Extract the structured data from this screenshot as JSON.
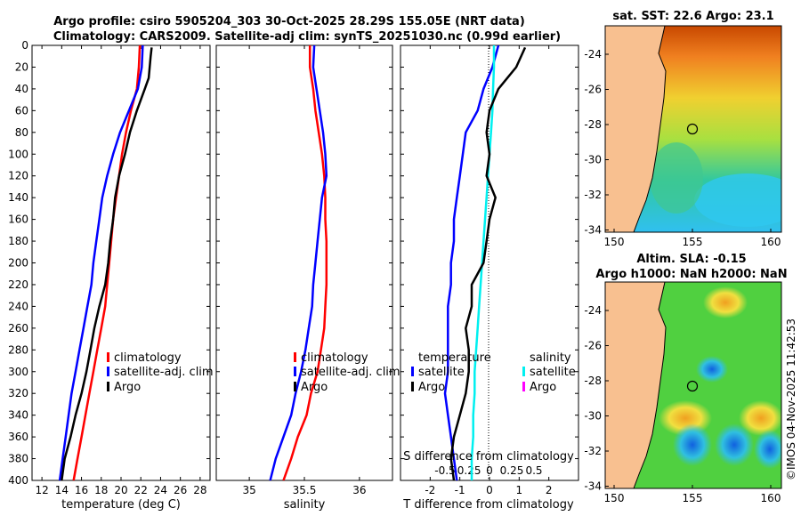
{
  "chart_data": [
    {
      "type": "line",
      "panel": "temperature",
      "title_line1": "Argo profile: csiro 5905204_303 30-Oct-2025 28.29S 155.05E (NRT data)",
      "title_line2": "Climatology: CARS2009. Satellite-adj clim: synTS_20251030.nc (0.99d earlier)",
      "xlabel": "temperature (deg C)",
      "xlim": [
        11,
        29
      ],
      "xticks": [
        "12",
        "14",
        "16",
        "18",
        "20",
        "22",
        "24",
        "26",
        "28"
      ],
      "ylim": [
        400,
        0
      ],
      "yticks": [
        "0",
        "20",
        "40",
        "60",
        "80",
        "100",
        "120",
        "140",
        "160",
        "180",
        "200",
        "220",
        "240",
        "260",
        "280",
        "300",
        "320",
        "340",
        "360",
        "380",
        "400"
      ],
      "legend": [
        "climatology",
        "satellite-adj. clim",
        "Argo"
      ],
      "series": [
        {
          "name": "climatology",
          "color": "#ff0000",
          "points": [
            [
              21.9,
              0
            ],
            [
              21.8,
              20
            ],
            [
              21.6,
              40
            ],
            [
              21.0,
              60
            ],
            [
              20.5,
              80
            ],
            [
              20.1,
              100
            ],
            [
              19.8,
              120
            ],
            [
              19.5,
              140
            ],
            [
              19.2,
              160
            ],
            [
              19.0,
              180
            ],
            [
              18.8,
              200
            ],
            [
              18.6,
              220
            ],
            [
              18.4,
              240
            ],
            [
              18.0,
              260
            ],
            [
              17.6,
              280
            ],
            [
              17.2,
              300
            ],
            [
              16.8,
              320
            ],
            [
              16.4,
              340
            ],
            [
              16.0,
              360
            ],
            [
              15.6,
              380
            ],
            [
              15.2,
              400
            ]
          ]
        },
        {
          "name": "satellite-adj. clim",
          "color": "#0000ff",
          "points": [
            [
              22.2,
              0
            ],
            [
              22.1,
              20
            ],
            [
              21.7,
              40
            ],
            [
              20.8,
              60
            ],
            [
              19.9,
              80
            ],
            [
              19.2,
              100
            ],
            [
              18.6,
              120
            ],
            [
              18.1,
              140
            ],
            [
              17.8,
              160
            ],
            [
              17.5,
              180
            ],
            [
              17.2,
              200
            ],
            [
              17.0,
              220
            ],
            [
              16.6,
              240
            ],
            [
              16.2,
              260
            ],
            [
              15.8,
              280
            ],
            [
              15.4,
              300
            ],
            [
              15.0,
              320
            ],
            [
              14.7,
              340
            ],
            [
              14.4,
              360
            ],
            [
              14.1,
              380
            ],
            [
              13.8,
              400
            ]
          ]
        },
        {
          "name": "Argo",
          "color": "#000000",
          "points": [
            [
              23.1,
              2
            ],
            [
              23.0,
              10
            ],
            [
              22.9,
              20
            ],
            [
              22.8,
              30
            ],
            [
              22.4,
              40
            ],
            [
              21.6,
              60
            ],
            [
              20.9,
              80
            ],
            [
              20.4,
              100
            ],
            [
              19.8,
              120
            ],
            [
              19.4,
              140
            ],
            [
              19.2,
              160
            ],
            [
              18.9,
              180
            ],
            [
              18.7,
              200
            ],
            [
              18.4,
              220
            ],
            [
              17.8,
              240
            ],
            [
              17.3,
              260
            ],
            [
              16.9,
              280
            ],
            [
              16.5,
              300
            ],
            [
              16.0,
              320
            ],
            [
              15.4,
              340
            ],
            [
              14.9,
              360
            ],
            [
              14.3,
              380
            ],
            [
              14.0,
              400
            ]
          ]
        }
      ]
    },
    {
      "type": "line",
      "panel": "salinity",
      "xlabel": "salinity",
      "xlim": [
        34.7,
        36.3
      ],
      "xticks": [
        "35",
        "35.5",
        "36"
      ],
      "ylim": [
        400,
        0
      ],
      "legend": [
        "climatology",
        "satellite-adj. clim",
        "Argo"
      ],
      "series": [
        {
          "name": "climatology",
          "color": "#ff0000",
          "points": [
            [
              35.55,
              0
            ],
            [
              35.55,
              20
            ],
            [
              35.58,
              40
            ],
            [
              35.6,
              60
            ],
            [
              35.63,
              80
            ],
            [
              35.66,
              100
            ],
            [
              35.68,
              120
            ],
            [
              35.69,
              140
            ],
            [
              35.69,
              160
            ],
            [
              35.7,
              180
            ],
            [
              35.7,
              200
            ],
            [
              35.7,
              220
            ],
            [
              35.69,
              240
            ],
            [
              35.68,
              260
            ],
            [
              35.65,
              280
            ],
            [
              35.62,
              300
            ],
            [
              35.56,
              320
            ],
            [
              35.52,
              340
            ],
            [
              35.44,
              360
            ],
            [
              35.38,
              380
            ],
            [
              35.31,
              400
            ]
          ]
        },
        {
          "name": "satellite-adj. clim",
          "color": "#0000ff",
          "points": [
            [
              35.59,
              0
            ],
            [
              35.58,
              20
            ],
            [
              35.61,
              40
            ],
            [
              35.64,
              60
            ],
            [
              35.67,
              80
            ],
            [
              35.69,
              100
            ],
            [
              35.7,
              120
            ],
            [
              35.66,
              140
            ],
            [
              35.64,
              160
            ],
            [
              35.62,
              180
            ],
            [
              35.6,
              200
            ],
            [
              35.58,
              220
            ],
            [
              35.57,
              240
            ],
            [
              35.54,
              260
            ],
            [
              35.51,
              280
            ],
            [
              35.47,
              300
            ],
            [
              35.42,
              320
            ],
            [
              35.38,
              340
            ],
            [
              35.31,
              360
            ],
            [
              35.24,
              380
            ],
            [
              35.19,
              400
            ]
          ]
        }
      ]
    },
    {
      "type": "line",
      "panel": "difference",
      "xlabel": "T difference from climatology",
      "xlabel2": "S difference from climatology",
      "xlim": [
        -3,
        3
      ],
      "xticks": [
        "-2",
        "-1",
        "0",
        "1",
        "2"
      ],
      "xticks2": [
        "-0.5",
        "-0.25",
        "0",
        "0.25",
        "0.5"
      ],
      "legend_t_header": "temperature",
      "legend_t": [
        "satellite",
        "Argo"
      ],
      "legend_s_header": "salinity",
      "legend_s": [
        "satellite",
        "Argo"
      ],
      "series": [
        {
          "name": "temperature satellite",
          "color": "#0000ff",
          "points": [
            [
              0.3,
              0
            ],
            [
              0.1,
              20
            ],
            [
              -0.2,
              40
            ],
            [
              -0.4,
              60
            ],
            [
              -0.8,
              80
            ],
            [
              -0.9,
              100
            ],
            [
              -1.0,
              120
            ],
            [
              -1.1,
              140
            ],
            [
              -1.2,
              160
            ],
            [
              -1.2,
              180
            ],
            [
              -1.3,
              200
            ],
            [
              -1.3,
              220
            ],
            [
              -1.4,
              240
            ],
            [
              -1.4,
              260
            ],
            [
              -1.4,
              280
            ],
            [
              -1.4,
              300
            ],
            [
              -1.5,
              320
            ],
            [
              -1.4,
              340
            ],
            [
              -1.3,
              360
            ],
            [
              -1.2,
              380
            ],
            [
              -1.1,
              400
            ]
          ]
        },
        {
          "name": "salinity satellite",
          "color": "#00f0f0",
          "points": [
            [
              0.15,
              0
            ],
            [
              0.15,
              20
            ],
            [
              0.12,
              40
            ],
            [
              0.1,
              60
            ],
            [
              0.05,
              80
            ],
            [
              0.0,
              100
            ],
            [
              -0.05,
              120
            ],
            [
              -0.1,
              140
            ],
            [
              -0.15,
              160
            ],
            [
              -0.2,
              180
            ],
            [
              -0.25,
              200
            ],
            [
              -0.3,
              220
            ],
            [
              -0.35,
              240
            ],
            [
              -0.4,
              260
            ],
            [
              -0.45,
              280
            ],
            [
              -0.5,
              300
            ],
            [
              -0.5,
              320
            ],
            [
              -0.55,
              340
            ],
            [
              -0.55,
              360
            ],
            [
              -0.6,
              380
            ],
            [
              -0.6,
              400
            ]
          ]
        },
        {
          "name": "temperature Argo",
          "color": "#000000",
          "points": [
            [
              1.2,
              2
            ],
            [
              0.9,
              20
            ],
            [
              0.6,
              30
            ],
            [
              0.3,
              40
            ],
            [
              0.0,
              60
            ],
            [
              -0.1,
              80
            ],
            [
              0.0,
              100
            ],
            [
              -0.1,
              120
            ],
            [
              0.2,
              140
            ],
            [
              0.0,
              160
            ],
            [
              -0.1,
              180
            ],
            [
              -0.2,
              200
            ],
            [
              -0.6,
              220
            ],
            [
              -0.6,
              240
            ],
            [
              -0.8,
              260
            ],
            [
              -0.7,
              280
            ],
            [
              -0.7,
              300
            ],
            [
              -0.8,
              320
            ],
            [
              -1.0,
              340
            ],
            [
              -1.2,
              360
            ],
            [
              -1.3,
              380
            ],
            [
              -1.2,
              400
            ]
          ]
        }
      ]
    },
    {
      "type": "heatmap",
      "panel": "sst-map",
      "title": "sat. SST: 22.6 Argo: 23.1",
      "xticks": [
        "150",
        "155",
        "160"
      ],
      "yticks": [
        "-24",
        "-26",
        "-28",
        "-30",
        "-32",
        "-34"
      ]
    },
    {
      "type": "heatmap",
      "panel": "sla-map",
      "title_line1": "Altim. SLA: -0.15",
      "title_line2": "Argo h1000: NaN h2000: NaN",
      "xticks": [
        "150",
        "155",
        "160"
      ],
      "yticks": [
        "-24",
        "-26",
        "-28",
        "-30",
        "-32",
        "-34"
      ]
    }
  ],
  "timestamp": "©IMOS 04-Nov-2025 11:42:53",
  "colors": {
    "red": "#ff0000",
    "blue": "#0000ff",
    "cyan": "#00f0f0",
    "magenta": "#ff00ff",
    "black": "#000000",
    "land": "#f8c090"
  }
}
